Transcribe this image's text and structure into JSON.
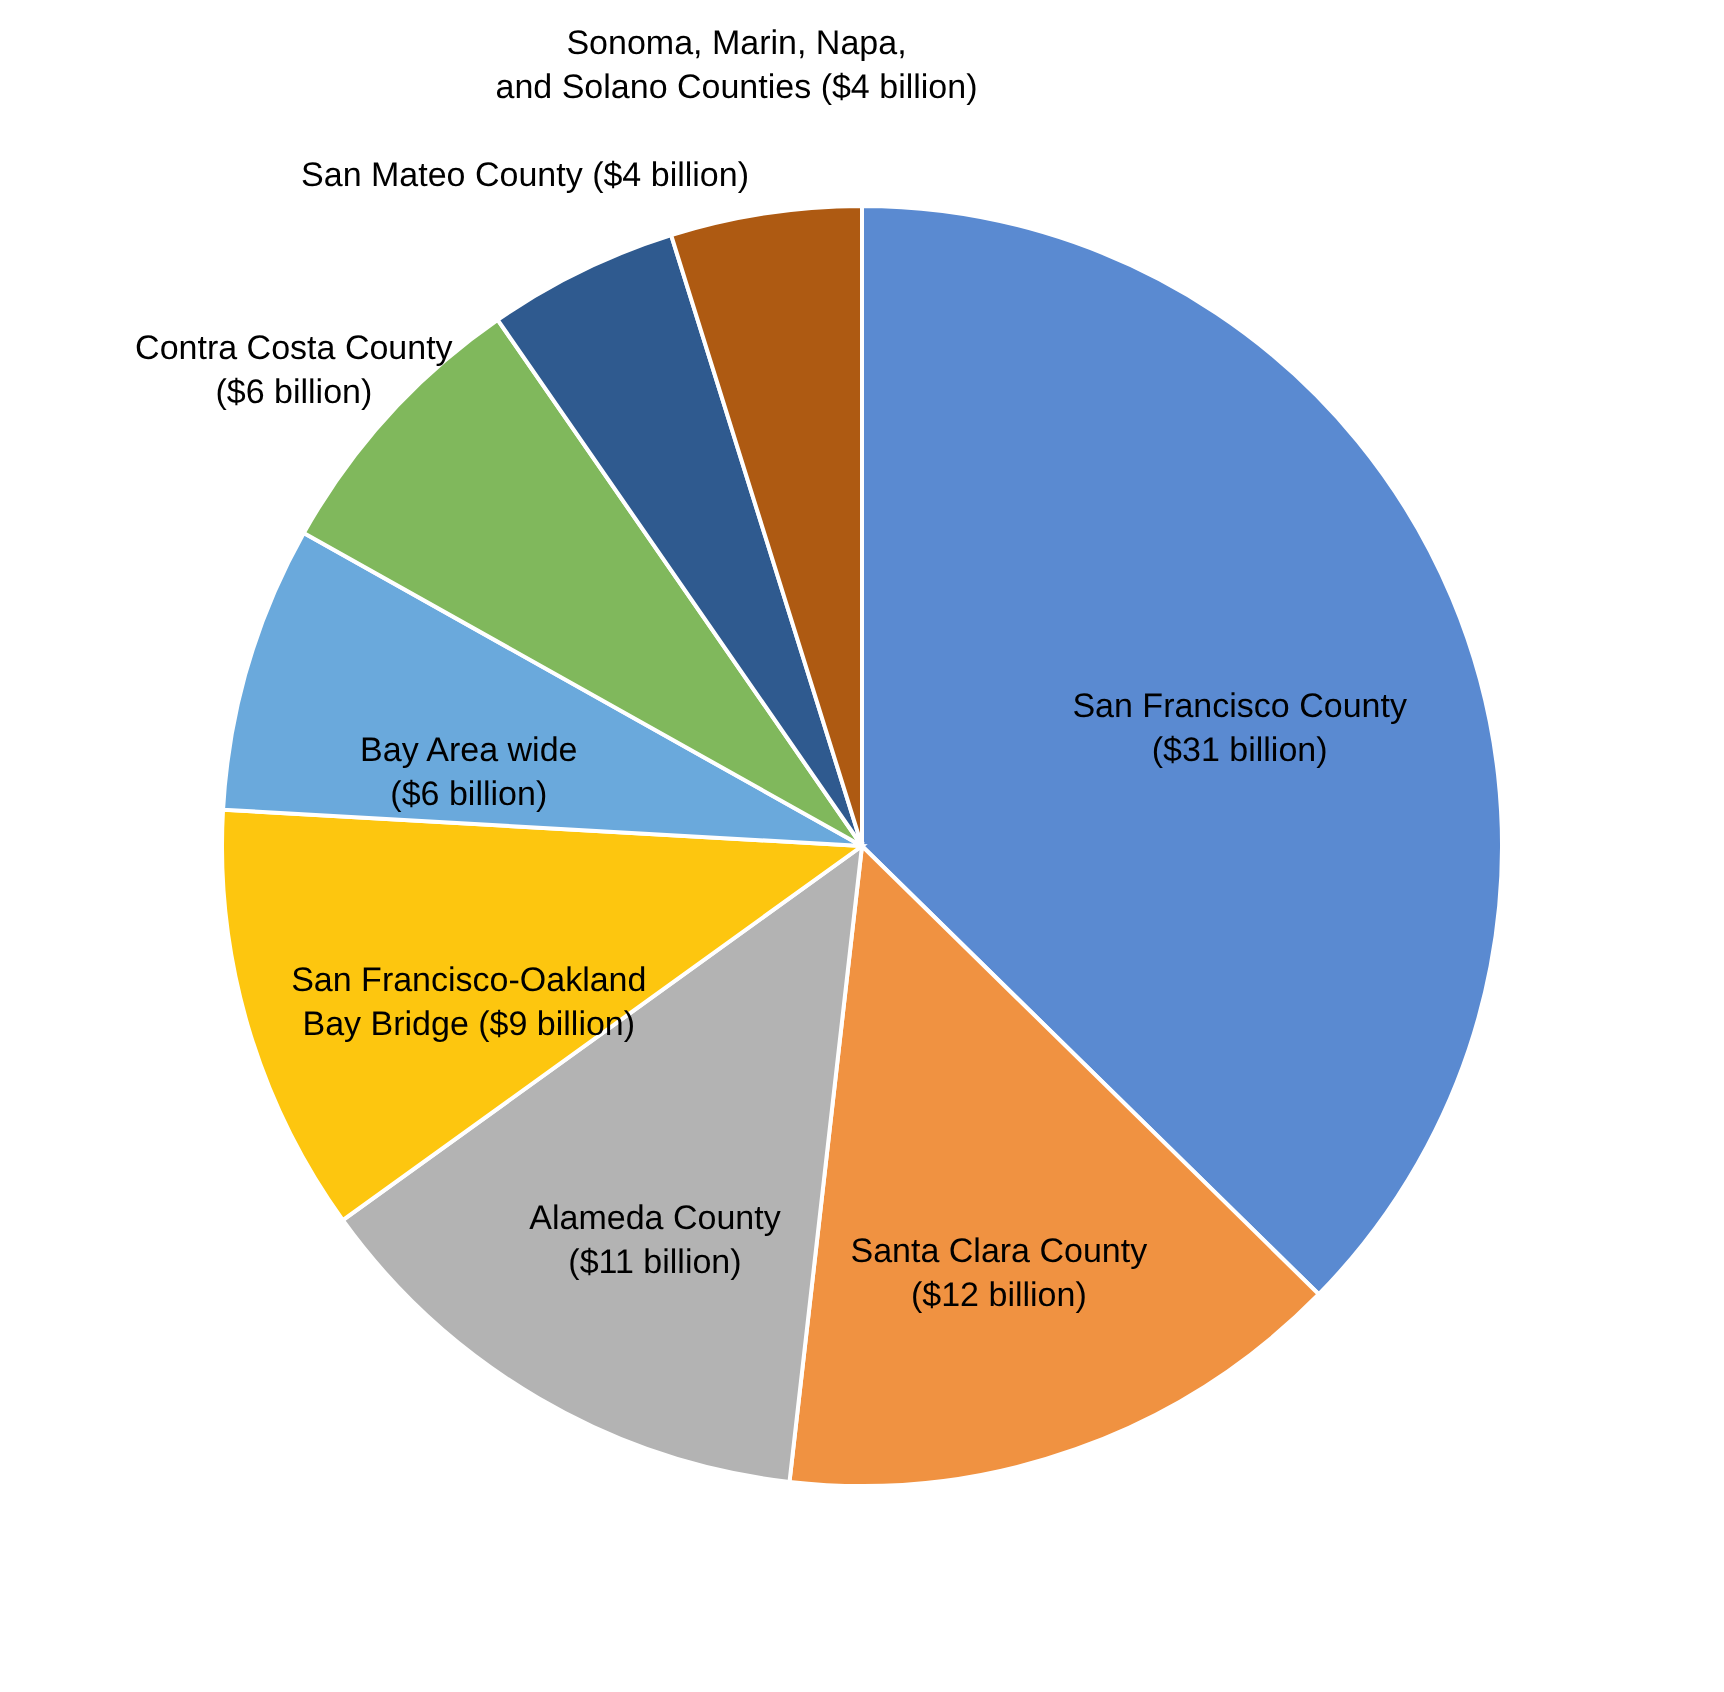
{
  "chart_data": {
    "type": "pie",
    "categories": [
      "San Francisco County ($31 billion)",
      "Santa Clara County ($12 billion)",
      "Alameda County ($11 billion)",
      "San Francisco-Oakland Bay Bridge ($9 billion)",
      "Bay Area wide ($6 billion)",
      "Contra Costa County ($6 billion)",
      "San Mateo County ($4 billion)",
      "Sonoma, Marin, Napa, and Solano Counties ($4 billion)"
    ],
    "values": [
      31,
      12,
      11,
      9,
      6,
      6,
      4,
      4
    ],
    "colors": [
      "#5a8ad1",
      "#f09241",
      "#b3b3b3",
      "#fdc60f",
      "#6aa9dc",
      "#80b85c",
      "#2f5a8f",
      "#ae5a12"
    ]
  }
}
